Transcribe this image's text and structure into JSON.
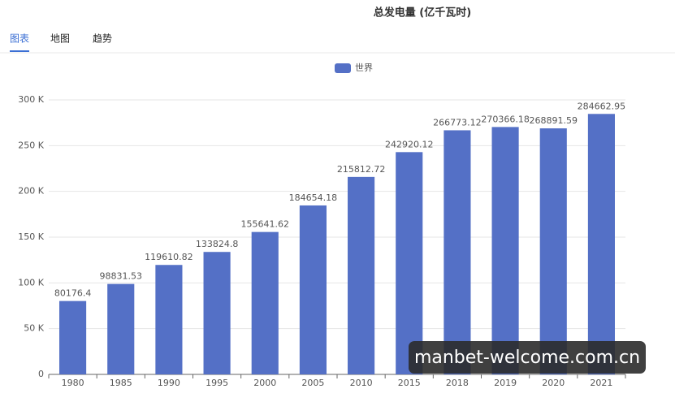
{
  "tabs": [
    "图表",
    "地图",
    "趋势"
  ],
  "watermark": "manbet-welcome.com.cn",
  "chart_data": {
    "type": "bar",
    "title": "总发电量 (亿千瓦时)",
    "categories": [
      "1980",
      "1985",
      "1990",
      "1995",
      "2000",
      "2005",
      "2010",
      "2015",
      "2018",
      "2019",
      "2020",
      "2021"
    ],
    "series": [
      {
        "name": "世界",
        "color": "#5470c6",
        "values": [
          80176.4,
          98831.53,
          119610.82,
          133824.8,
          155641.62,
          184654.18,
          215812.72,
          242920.12,
          266773.12,
          270366.18,
          268891.59,
          284662.95
        ]
      }
    ],
    "ylim": [
      0,
      300000
    ],
    "yticks": [
      0,
      {
        "value": 50000,
        "label": "50 K"
      },
      {
        "value": 100000,
        "label": "100 K"
      },
      {
        "value": 150000,
        "label": "150 K"
      },
      {
        "value": 200000,
        "label": "200 K"
      },
      {
        "value": 250000,
        "label": "250 K"
      },
      {
        "value": 300000,
        "label": "300 K"
      }
    ],
    "grid": true
  }
}
